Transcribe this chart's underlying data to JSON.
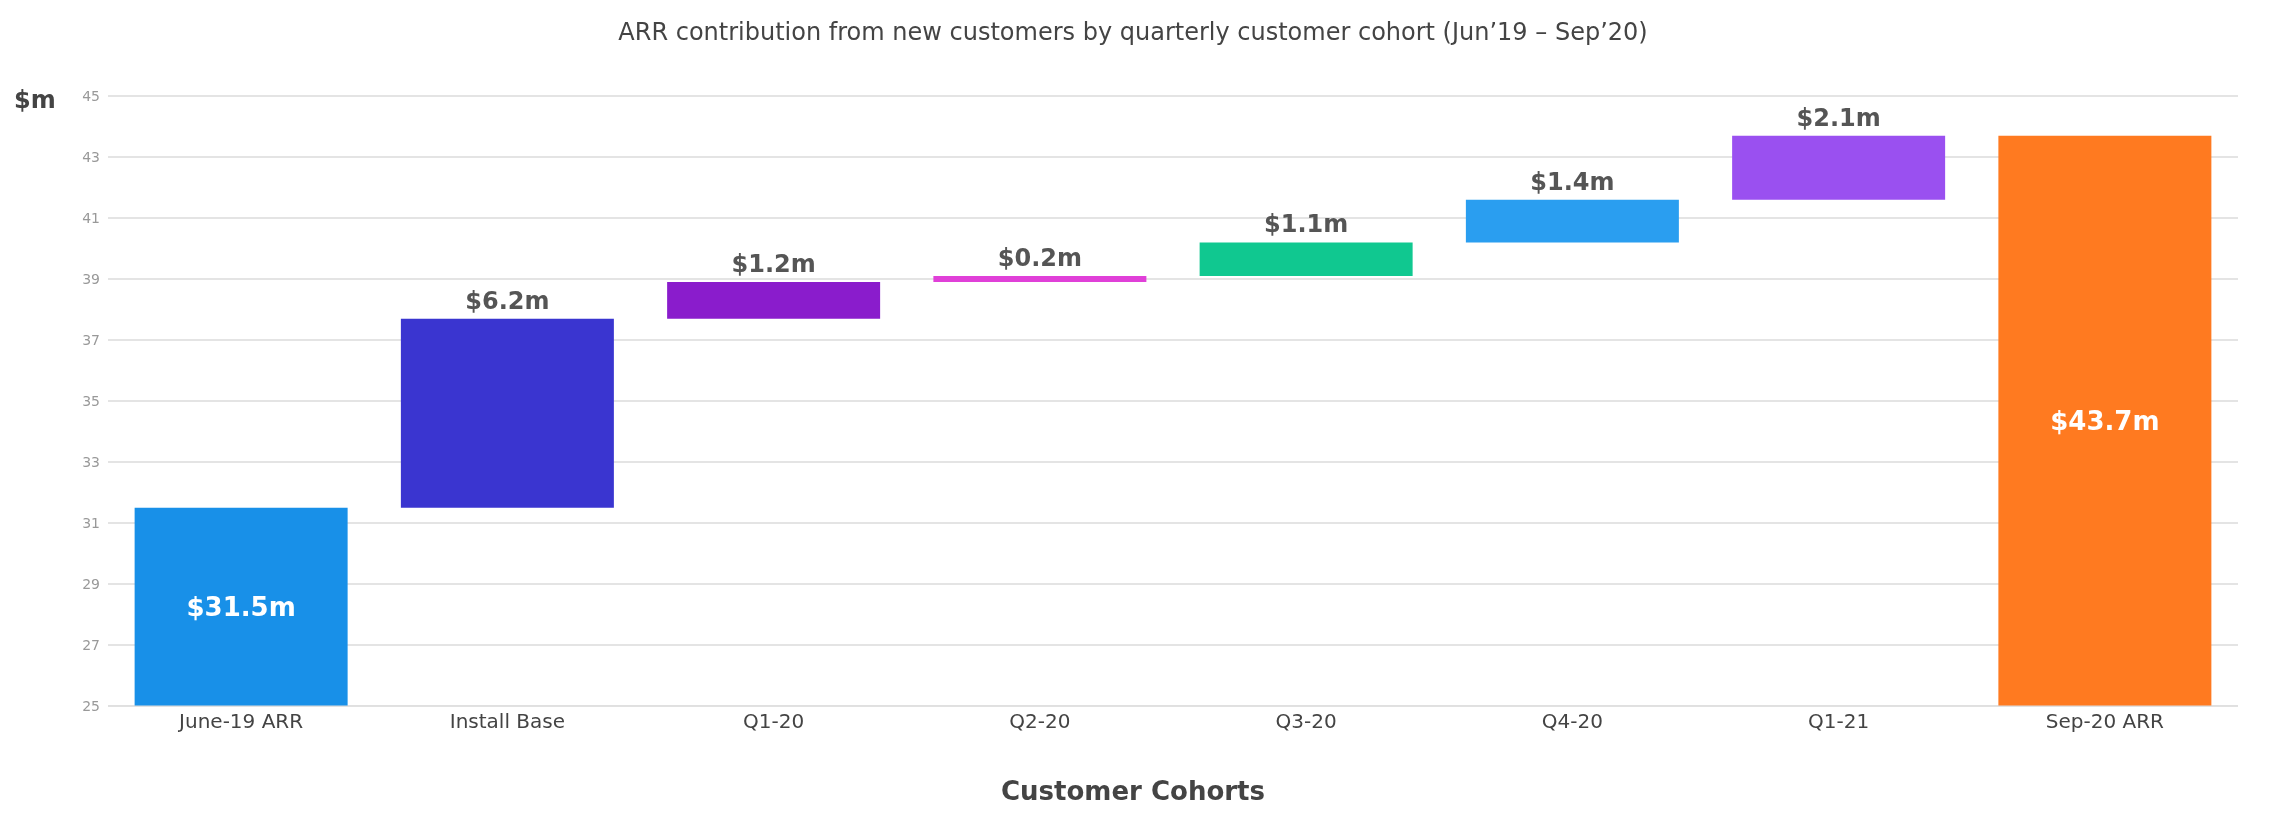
{
  "chart_data": {
    "type": "bar",
    "title": "ARR contribution from new customers by quarterly customer cohort (Jun’19 – Sep’20)",
    "xlabel": "Customer Cohorts",
    "ylabel": "$m",
    "categories": [
      "June-19 ARR",
      "Install Base",
      "Q1-20",
      "Q2-20",
      "Q3-20",
      "Q4-20",
      "Q1-21",
      "Sep-20 ARR"
    ],
    "values": [
      31.5,
      6.2,
      1.2,
      0.2,
      1.1,
      1.4,
      2.1,
      43.7
    ],
    "base": [
      null,
      31.5,
      37.7,
      38.9,
      39.1,
      40.2,
      41.6,
      null
    ],
    "colors": [
      "#1890e8",
      "#3a35d0",
      "#8a1ccc",
      "#e040d8",
      "#10c890",
      "#2a9ef0",
      "#9a50f0",
      "#ff7a20"
    ],
    "value_labels": [
      "$31.5m",
      "$6.2m",
      "$1.2m",
      "$0.2m",
      "$1.1m",
      "$1.4m",
      "$2.1m",
      "$43.7m"
    ],
    "ylim": [
      25,
      45
    ],
    "yticks": [
      25,
      27,
      29,
      31,
      33,
      35,
      37,
      39,
      41,
      43,
      45
    ],
    "grid": "y"
  }
}
